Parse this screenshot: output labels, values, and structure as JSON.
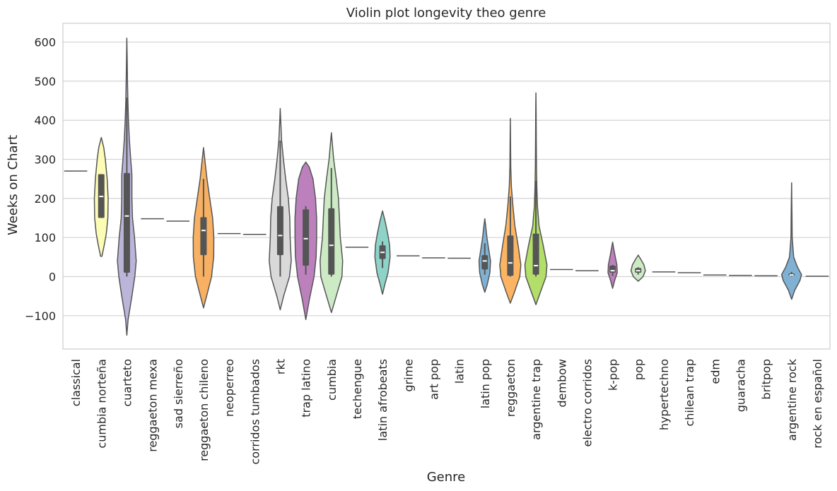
{
  "chart_data": {
    "type": "violin",
    "title": "Violin plot longevity theo genre",
    "xlabel": "Genre",
    "ylabel": "Weeks on Chart",
    "ylim": [
      -185,
      650
    ],
    "yticks": [
      -100,
      0,
      100,
      200,
      300,
      400,
      500,
      600
    ],
    "ytick_labels": [
      "−100",
      "0",
      "100",
      "200",
      "300",
      "400",
      "500",
      "600"
    ],
    "grid": true,
    "colors": {
      "outline": "#555555",
      "box": "#555555",
      "median": "#ffffff",
      "grid": "#d3d3d3",
      "frame": "#cccccc"
    },
    "categories": [
      {
        "name": "classical",
        "value": 270
      },
      {
        "name": "cumbia norteña",
        "color": "#fcfcb7",
        "min": 52,
        "max": 356,
        "q1": 150,
        "median": 205,
        "q3": 262,
        "wmin": 150,
        "wmax": 262,
        "width": 0.66,
        "profile": [
          [
            52,
            0.08
          ],
          [
            80,
            0.35
          ],
          [
            110,
            0.6
          ],
          [
            150,
            0.78
          ],
          [
            200,
            0.82
          ],
          [
            250,
            0.7
          ],
          [
            300,
            0.48
          ],
          [
            330,
            0.3
          ],
          [
            356,
            0
          ]
        ]
      },
      {
        "name": "cuarteto",
        "color": "#bab5d9",
        "min": -150,
        "max": 610,
        "q1": 10,
        "median": 155,
        "q3": 265,
        "wmin": 0,
        "wmax": 458,
        "width": 0.8,
        "profile": [
          [
            -150,
            0
          ],
          [
            -110,
            0.12
          ],
          [
            -50,
            0.5
          ],
          [
            0,
            0.78
          ],
          [
            40,
            0.92
          ],
          [
            100,
            0.75
          ],
          [
            150,
            0.55
          ],
          [
            200,
            0.5
          ],
          [
            260,
            0.5
          ],
          [
            300,
            0.38
          ],
          [
            350,
            0.25
          ],
          [
            400,
            0.16
          ],
          [
            450,
            0.1
          ],
          [
            500,
            0.06
          ],
          [
            560,
            0.03
          ],
          [
            610,
            0
          ]
        ]
      },
      {
        "name": "reggaeton mexa",
        "value": 148
      },
      {
        "name": "sad sierreño",
        "value": 142
      },
      {
        "name": "reggaeton chileno",
        "color": "#f8b062",
        "min": -80,
        "max": 330,
        "q1": 55,
        "median": 118,
        "q3": 152,
        "wmin": 0,
        "wmax": 250,
        "width": 0.84,
        "profile": [
          [
            -80,
            0
          ],
          [
            -40,
            0.38
          ],
          [
            0,
            0.75
          ],
          [
            50,
            0.95
          ],
          [
            100,
            0.96
          ],
          [
            150,
            0.85
          ],
          [
            200,
            0.58
          ],
          [
            250,
            0.32
          ],
          [
            300,
            0.12
          ],
          [
            330,
            0
          ]
        ]
      },
      {
        "name": "neoperreo",
        "value": 110
      },
      {
        "name": "corridos tumbados",
        "value": 108
      },
      {
        "name": "rkt",
        "color": "#d9d9d9",
        "min": -85,
        "max": 430,
        "q1": 55,
        "median": 105,
        "q3": 180,
        "wmin": 0,
        "wmax": 348,
        "width": 0.88,
        "profile": [
          [
            -85,
            0
          ],
          [
            -50,
            0.3
          ],
          [
            0,
            0.82
          ],
          [
            40,
            0.98
          ],
          [
            100,
            0.88
          ],
          [
            150,
            0.85
          ],
          [
            200,
            0.72
          ],
          [
            250,
            0.48
          ],
          [
            300,
            0.28
          ],
          [
            350,
            0.12
          ],
          [
            400,
            0.04
          ],
          [
            430,
            0
          ]
        ]
      },
      {
        "name": "trap latino",
        "color": "#bc80bd",
        "min": -110,
        "max": 293,
        "q1": 28,
        "median": 97,
        "q3": 172,
        "wmin": 5,
        "wmax": 180,
        "width": 0.9,
        "profile": [
          [
            -110,
            0
          ],
          [
            -60,
            0.3
          ],
          [
            0,
            0.72
          ],
          [
            50,
            0.9
          ],
          [
            100,
            0.94
          ],
          [
            150,
            0.94
          ],
          [
            200,
            0.84
          ],
          [
            250,
            0.62
          ],
          [
            280,
            0.3
          ],
          [
            293,
            0
          ]
        ]
      },
      {
        "name": "cumbia",
        "color": "#ccebc5",
        "min": -92,
        "max": 368,
        "q1": 5,
        "median": 80,
        "q3": 175,
        "wmin": 0,
        "wmax": 278,
        "width": 0.9,
        "profile": [
          [
            -92,
            0
          ],
          [
            -50,
            0.42
          ],
          [
            0,
            0.92
          ],
          [
            40,
            0.98
          ],
          [
            100,
            0.78
          ],
          [
            150,
            0.7
          ],
          [
            200,
            0.62
          ],
          [
            250,
            0.42
          ],
          [
            300,
            0.2
          ],
          [
            340,
            0.08
          ],
          [
            368,
            0
          ]
        ]
      },
      {
        "name": "techengue",
        "value": 75
      },
      {
        "name": "latin afrobeats",
        "color": "#8dd3c7",
        "min": -45,
        "max": 168,
        "q1": 45,
        "median": 62,
        "q3": 80,
        "wmin": 22,
        "wmax": 90,
        "width": 0.62,
        "profile": [
          [
            -45,
            0
          ],
          [
            -20,
            0.3
          ],
          [
            10,
            0.7
          ],
          [
            50,
            0.96
          ],
          [
            80,
            0.9
          ],
          [
            110,
            0.65
          ],
          [
            140,
            0.35
          ],
          [
            168,
            0
          ]
        ]
      },
      {
        "name": "grime",
        "value": 53
      },
      {
        "name": "art pop",
        "value": 48
      },
      {
        "name": "latin",
        "value": 47
      },
      {
        "name": "latin pop",
        "color": "#80b1d3",
        "min": -40,
        "max": 148,
        "q1": 18,
        "median": 40,
        "q3": 55,
        "wmin": 5,
        "wmax": 85,
        "width": 0.56,
        "profile": [
          [
            -40,
            0
          ],
          [
            -20,
            0.35
          ],
          [
            10,
            0.72
          ],
          [
            40,
            0.8
          ],
          [
            70,
            0.55
          ],
          [
            100,
            0.3
          ],
          [
            130,
            0.12
          ],
          [
            148,
            0
          ]
        ]
      },
      {
        "name": "reggaeton",
        "color": "#fdb462",
        "min": -68,
        "max": 405,
        "q1": 2,
        "median": 35,
        "q3": 105,
        "wmin": 0,
        "wmax": 205,
        "width": 0.84,
        "profile": [
          [
            -68,
            0
          ],
          [
            -40,
            0.38
          ],
          [
            0,
            0.88
          ],
          [
            30,
            0.98
          ],
          [
            80,
            0.72
          ],
          [
            130,
            0.42
          ],
          [
            180,
            0.24
          ],
          [
            230,
            0.1
          ],
          [
            280,
            0.04
          ],
          [
            350,
            0.02
          ],
          [
            405,
            0
          ]
        ]
      },
      {
        "name": "argentine trap",
        "color": "#b3de69",
        "min": -72,
        "max": 470,
        "q1": 5,
        "median": 28,
        "q3": 110,
        "wmin": 0,
        "wmax": 245,
        "width": 0.88,
        "profile": [
          [
            -72,
            0
          ],
          [
            -40,
            0.4
          ],
          [
            0,
            0.9
          ],
          [
            30,
            0.98
          ],
          [
            80,
            0.65
          ],
          [
            130,
            0.28
          ],
          [
            180,
            0.14
          ],
          [
            230,
            0.08
          ],
          [
            280,
            0.05
          ],
          [
            350,
            0.03
          ],
          [
            420,
            0.02
          ],
          [
            470,
            0
          ]
        ]
      },
      {
        "name": "dembow",
        "value": 18
      },
      {
        "name": "electro corridos",
        "value": 15
      },
      {
        "name": "k-pop",
        "color": "#bc80bd",
        "min": -30,
        "max": 88,
        "q1": 10,
        "median": 15,
        "q3": 28,
        "wmin": 2,
        "wmax": 30,
        "width": 0.46,
        "profile": [
          [
            -30,
            0
          ],
          [
            -10,
            0.35
          ],
          [
            10,
            0.78
          ],
          [
            30,
            0.72
          ],
          [
            55,
            0.4
          ],
          [
            75,
            0.15
          ],
          [
            88,
            0
          ]
        ]
      },
      {
        "name": "pop",
        "color": "#ccebc5",
        "min": -12,
        "max": 55,
        "q1": 10,
        "median": 15,
        "q3": 22,
        "wmin": 5,
        "wmax": 24,
        "width": 0.64,
        "profile": [
          [
            -12,
            0
          ],
          [
            0,
            0.6
          ],
          [
            15,
            0.88
          ],
          [
            30,
            0.7
          ],
          [
            45,
            0.3
          ],
          [
            55,
            0
          ]
        ]
      },
      {
        "name": "hypertechno",
        "value": 12
      },
      {
        "name": "chilean trap",
        "value": 10
      },
      {
        "name": "edm",
        "value": 4
      },
      {
        "name": "guaracha",
        "value": 3
      },
      {
        "name": "britpop",
        "value": 2
      },
      {
        "name": "argentine rock",
        "color": "#80b1d3",
        "min": -58,
        "max": 240,
        "q1": 2,
        "median": 4,
        "q3": 8,
        "wmin": 0,
        "wmax": 12,
        "width": 0.82,
        "profile": [
          [
            -58,
            0
          ],
          [
            -35,
            0.3
          ],
          [
            -10,
            0.8
          ],
          [
            5,
            0.95
          ],
          [
            25,
            0.55
          ],
          [
            50,
            0.2
          ],
          [
            100,
            0.06
          ],
          [
            160,
            0.04
          ],
          [
            200,
            0.02
          ],
          [
            240,
            0
          ]
        ]
      },
      {
        "name": "rock en español",
        "value": 1
      }
    ]
  }
}
